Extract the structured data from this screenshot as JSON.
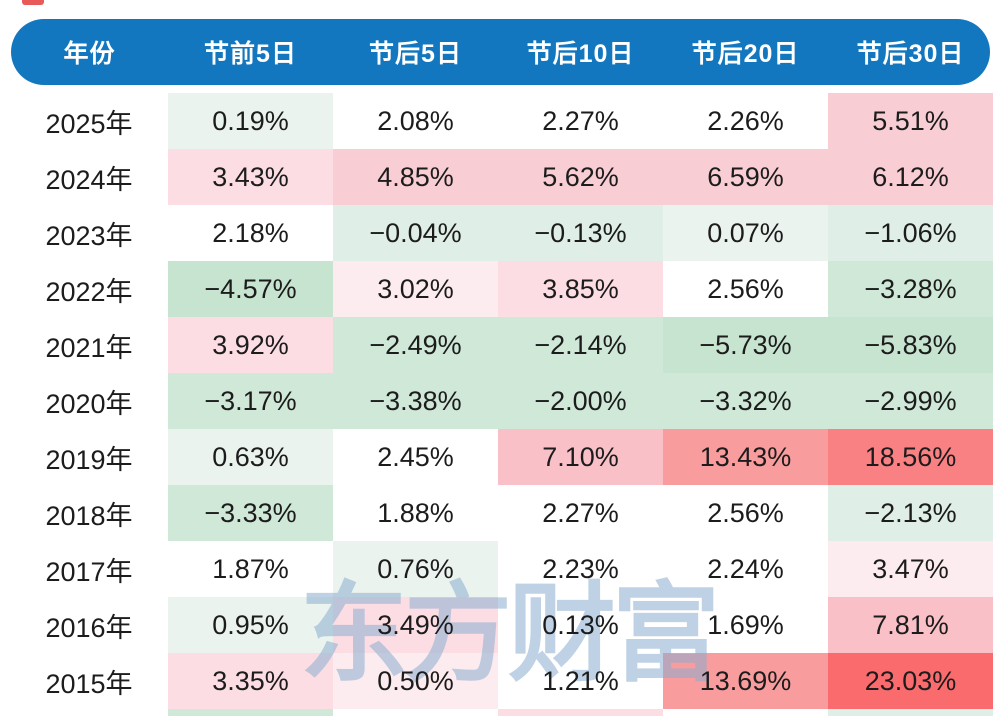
{
  "crop_mark_color": "#e85a5a",
  "header": {
    "background_color": "#1377bf",
    "text_color": "#ffffff",
    "columns": [
      "年份",
      "节前5日",
      "节后5日",
      "节后10日",
      "节后20日",
      "节后30日"
    ]
  },
  "watermark": {
    "text": "东方财富",
    "color": "#8badd0"
  },
  "palette": {
    "white": "#ffffff",
    "green-faint": "#ebf3ef",
    "green-1": "#dfeee6",
    "green-2": "#cfe8d7",
    "green-3": "#c6e4cf",
    "pink-0": "#fdecef",
    "pink-1": "#fbdde3",
    "pink-2": "#f8cdd3",
    "pink-3": "#fac0c8",
    "red-2": "#f99c9d",
    "red-3": "#f98183",
    "red-4": "#f96b6d"
  },
  "chart_data": {
    "type": "table",
    "title": "",
    "columns": [
      "年份",
      "节前5日",
      "节后5日",
      "节后10日",
      "节后20日",
      "节后30日"
    ],
    "rows": [
      {
        "year": "2025年",
        "values": [
          "0.19%",
          "2.08%",
          "2.27%",
          "2.26%",
          "5.51%"
        ],
        "tones": [
          "green-faint",
          "white",
          "white",
          "white",
          "pink-2"
        ]
      },
      {
        "year": "2024年",
        "values": [
          "3.43%",
          "4.85%",
          "5.62%",
          "6.59%",
          "6.12%"
        ],
        "tones": [
          "pink-1",
          "pink-2",
          "pink-2",
          "pink-2",
          "pink-2"
        ]
      },
      {
        "year": "2023年",
        "values": [
          "2.18%",
          "−0.04%",
          "−0.13%",
          "0.07%",
          "−1.06%"
        ],
        "tones": [
          "white",
          "green-1",
          "green-1",
          "green-faint",
          "green-1"
        ]
      },
      {
        "year": "2022年",
        "values": [
          "−4.57%",
          "3.02%",
          "3.85%",
          "2.56%",
          "−3.28%"
        ],
        "tones": [
          "green-3",
          "pink-0",
          "pink-1",
          "white",
          "green-2"
        ]
      },
      {
        "year": "2021年",
        "values": [
          "3.92%",
          "−2.49%",
          "−2.14%",
          "−5.73%",
          "−5.83%"
        ],
        "tones": [
          "pink-1",
          "green-2",
          "green-2",
          "green-3",
          "green-3"
        ]
      },
      {
        "year": "2020年",
        "values": [
          "−3.17%",
          "−3.38%",
          "−2.00%",
          "−3.32%",
          "−2.99%"
        ],
        "tones": [
          "green-2",
          "green-2",
          "green-2",
          "green-2",
          "green-2"
        ]
      },
      {
        "year": "2019年",
        "values": [
          "0.63%",
          "2.45%",
          "7.10%",
          "13.43%",
          "18.56%"
        ],
        "tones": [
          "green-faint",
          "white",
          "pink-3",
          "red-2",
          "red-3"
        ]
      },
      {
        "year": "2018年",
        "values": [
          "−3.33%",
          "1.88%",
          "2.27%",
          "2.56%",
          "−2.13%"
        ],
        "tones": [
          "green-2",
          "white",
          "white",
          "white",
          "green-1"
        ]
      },
      {
        "year": "2017年",
        "values": [
          "1.87%",
          "0.76%",
          "2.23%",
          "2.24%",
          "3.47%"
        ],
        "tones": [
          "white",
          "green-faint",
          "white",
          "white",
          "pink-0"
        ]
      },
      {
        "year": "2016年",
        "values": [
          "0.95%",
          "3.49%",
          "0.13%",
          "1.69%",
          "7.81%"
        ],
        "tones": [
          "green-faint",
          "pink-1",
          "white",
          "white",
          "pink-3"
        ]
      },
      {
        "year": "2015年",
        "values": [
          "3.35%",
          "0.50%",
          "1.21%",
          "13.69%",
          "23.03%"
        ],
        "tones": [
          "pink-1",
          "pink-0",
          "white",
          "red-2",
          "red-4"
        ]
      }
    ],
    "partial_bottom_row_tones": [
      "green-2",
      "white",
      "pink-1",
      "white",
      "green-1"
    ]
  }
}
